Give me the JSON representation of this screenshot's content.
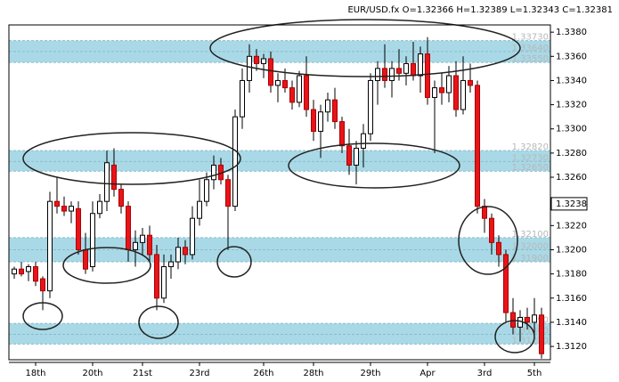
{
  "chart_data": {
    "type": "candlestick",
    "title": "EUR/USD.fx O=1.32366 H=1.32389 L=1.32343 C=1.32381",
    "categories": [
      null,
      null,
      null,
      "18th",
      null,
      null,
      null,
      null,
      null,
      null,
      null,
      "20th",
      null,
      null,
      null,
      null,
      null,
      null,
      "21st",
      null,
      null,
      null,
      null,
      null,
      null,
      null,
      "23rd",
      null,
      null,
      null,
      null,
      null,
      null,
      null,
      null,
      "26th",
      null,
      null,
      null,
      null,
      null,
      null,
      "28th",
      null,
      null,
      null,
      null,
      null,
      null,
      null,
      "29th",
      null,
      null,
      null,
      null,
      null,
      null,
      null,
      "Apr",
      null,
      null,
      null,
      null,
      null,
      null,
      null,
      "3rd",
      null,
      null,
      null,
      null,
      null,
      null,
      "5th",
      null
    ],
    "open": [
      1.318,
      1.3184,
      1.3182,
      1.3186,
      1.3176,
      1.3166,
      1.324,
      1.3236,
      1.3232,
      1.3234,
      1.32,
      1.3186,
      1.323,
      1.324,
      1.327,
      1.325,
      1.3236,
      1.32,
      1.3206,
      1.3212,
      1.3196,
      1.316,
      1.3186,
      1.319,
      1.3202,
      1.3196,
      1.3226,
      1.324,
      1.3258,
      1.327,
      1.3258,
      1.3236,
      1.331,
      1.334,
      1.336,
      1.3354,
      1.3358,
      1.3336,
      1.334,
      1.3334,
      1.3322,
      1.3344,
      1.3316,
      1.3298,
      1.3314,
      1.3324,
      1.3306,
      1.3286,
      1.327,
      1.3284,
      1.3296,
      1.334,
      1.335,
      1.334,
      1.335,
      1.3346,
      1.3354,
      1.3344,
      1.3362,
      1.3326,
      1.3334,
      1.333,
      1.3344,
      1.3316,
      1.334,
      1.3336,
      1.3236,
      1.3226,
      1.3206,
      1.3196,
      1.3148,
      1.3136,
      1.3144,
      1.314,
      1.3146
    ],
    "high": [
      1.3186,
      1.319,
      1.3188,
      1.319,
      1.3178,
      1.3248,
      1.326,
      1.3244,
      1.324,
      1.324,
      1.3214,
      1.324,
      1.3246,
      1.3282,
      1.3284,
      1.3254,
      1.324,
      1.3216,
      1.3218,
      1.322,
      1.3204,
      1.3196,
      1.3196,
      1.321,
      1.3208,
      1.3236,
      1.3258,
      1.3264,
      1.3278,
      1.3276,
      1.3262,
      1.3316,
      1.335,
      1.337,
      1.3366,
      1.3362,
      1.3364,
      1.3346,
      1.335,
      1.334,
      1.3348,
      1.336,
      1.3324,
      1.332,
      1.333,
      1.3334,
      1.331,
      1.33,
      1.329,
      1.3304,
      1.3346,
      1.3356,
      1.337,
      1.3356,
      1.3366,
      1.336,
      1.3372,
      1.3368,
      1.3376,
      1.334,
      1.3346,
      1.3352,
      1.3356,
      1.336,
      1.3354,
      1.334,
      1.3242,
      1.323,
      1.3212,
      1.32,
      1.316,
      1.315,
      1.3152,
      1.316,
      1.3152
    ],
    "low": [
      1.3176,
      1.3178,
      1.3174,
      1.317,
      1.315,
      1.316,
      1.323,
      1.3228,
      1.3222,
      1.3196,
      1.318,
      1.3182,
      1.3226,
      1.3232,
      1.3244,
      1.323,
      1.319,
      1.3186,
      1.3196,
      1.319,
      1.315,
      1.3156,
      1.3176,
      1.3184,
      1.3188,
      1.3192,
      1.322,
      1.3236,
      1.325,
      1.3254,
      1.32,
      1.3232,
      1.33,
      1.333,
      1.3348,
      1.3342,
      1.333,
      1.3322,
      1.333,
      1.3316,
      1.3318,
      1.331,
      1.329,
      1.3276,
      1.3306,
      1.33,
      1.328,
      1.3262,
      1.3254,
      1.3268,
      1.329,
      1.332,
      1.3334,
      1.3326,
      1.334,
      1.3336,
      1.334,
      1.333,
      1.332,
      1.328,
      1.332,
      1.3322,
      1.331,
      1.3312,
      1.333,
      1.323,
      1.3214,
      1.3196,
      1.3186,
      1.314,
      1.313,
      1.3124,
      1.3134,
      1.313,
      1.311
    ],
    "close": [
      1.3184,
      1.318,
      1.3186,
      1.3174,
      1.3166,
      1.324,
      1.3236,
      1.3232,
      1.3236,
      1.32,
      1.3184,
      1.323,
      1.324,
      1.3272,
      1.325,
      1.3236,
      1.32,
      1.3206,
      1.3212,
      1.3196,
      1.316,
      1.3186,
      1.319,
      1.3202,
      1.3196,
      1.3226,
      1.324,
      1.3258,
      1.327,
      1.3258,
      1.3236,
      1.331,
      1.334,
      1.336,
      1.3354,
      1.3358,
      1.3336,
      1.334,
      1.3334,
      1.3322,
      1.3344,
      1.3316,
      1.3298,
      1.3314,
      1.3324,
      1.3306,
      1.3286,
      1.327,
      1.3284,
      1.3296,
      1.334,
      1.335,
      1.334,
      1.335,
      1.3346,
      1.3354,
      1.3344,
      1.3362,
      1.3326,
      1.3334,
      1.333,
      1.3344,
      1.3316,
      1.334,
      1.3336,
      1.3236,
      1.3226,
      1.3206,
      1.3196,
      1.3148,
      1.3136,
      1.3144,
      1.314,
      1.3146,
      1.3114
    ],
    "up_color": "#ffffff",
    "down_color": "#e8141a",
    "zone_color": "#a9d9e6",
    "ylim": [
      1.3109,
      1.3386
    ],
    "yticks": [
      {
        "value": 1.312,
        "label": "1.3120"
      },
      {
        "value": 1.314,
        "label": "1.3140"
      },
      {
        "value": 1.316,
        "label": "1.3160"
      },
      {
        "value": 1.318,
        "label": "1.3180"
      },
      {
        "value": 1.32,
        "label": "1.3200"
      },
      {
        "value": 1.322,
        "label": "1.3220"
      },
      {
        "value": 1.324,
        "label": "1.3240"
      },
      {
        "value": 1.326,
        "label": "1.3260"
      },
      {
        "value": 1.328,
        "label": "1.3280"
      },
      {
        "value": 1.33,
        "label": "1.3300"
      },
      {
        "value": 1.332,
        "label": "1.3320"
      },
      {
        "value": 1.334,
        "label": "1.3340"
      },
      {
        "value": 1.336,
        "label": "1.3360"
      },
      {
        "value": 1.338,
        "label": "1.3380"
      }
    ],
    "zones": [
      [
        {
          "value": 1.3373,
          "label": "1.33730"
        },
        {
          "value": 1.3364,
          "label": "1.33640"
        },
        {
          "value": 1.3355,
          "label": "1.33550"
        }
      ],
      [
        {
          "value": 1.3282,
          "label": "1.32820"
        },
        {
          "value": 1.3273,
          "label": "1.32730"
        },
        {
          "value": 1.3265,
          "label": "1.32650"
        }
      ],
      [
        {
          "value": 1.321,
          "label": "1.32100"
        },
        {
          "value": 1.32,
          "label": "1.32000"
        },
        {
          "value": 1.319,
          "label": "1.31900"
        }
      ],
      [
        {
          "value": 1.3139,
          "label": "1.31390"
        },
        {
          "value": 1.313,
          "label": "1.31300"
        },
        {
          "value": 1.3122,
          "label": "1.31220"
        }
      ]
    ],
    "last_price": {
      "value": 1.3238,
      "label": "1.3238"
    }
  }
}
